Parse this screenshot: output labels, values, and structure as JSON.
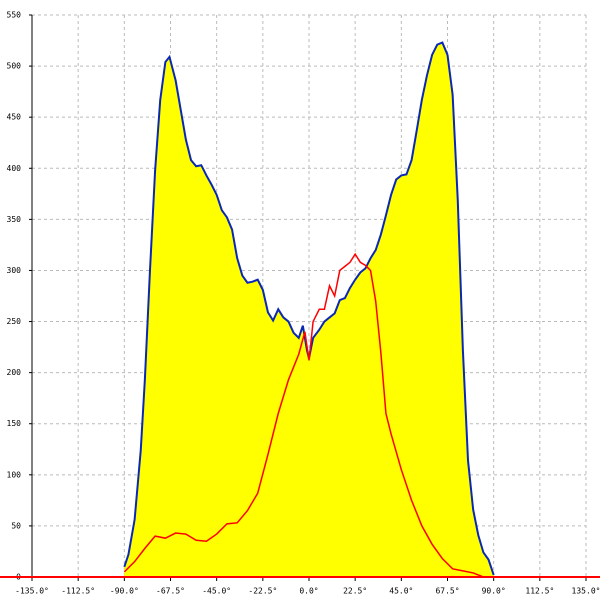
{
  "chart_data": {
    "type": "area",
    "xlim": [
      -135,
      135
    ],
    "xticks": [
      {
        "value": -135,
        "label": "-135.0°"
      },
      {
        "value": -112.5,
        "label": "-112.5°"
      },
      {
        "value": -90,
        "label": "-90.0°"
      },
      {
        "value": -67.5,
        "label": "-67.5°"
      },
      {
        "value": -45,
        "label": "-45.0°"
      },
      {
        "value": -22.5,
        "label": "-22.5°"
      },
      {
        "value": 0,
        "label": "0.0°"
      },
      {
        "value": 22.5,
        "label": "22.5°"
      },
      {
        "value": 45,
        "label": "45.0°"
      },
      {
        "value": 67.5,
        "label": "67.5°"
      },
      {
        "value": 90,
        "label": "90.0°"
      },
      {
        "value": 112.5,
        "label": "112.5°"
      },
      {
        "value": 135,
        "label": "135.0°"
      }
    ],
    "ylim": [
      0,
      550
    ],
    "yticks": [
      0,
      50,
      100,
      150,
      200,
      250,
      300,
      350,
      400,
      450,
      500,
      550
    ],
    "grid": true,
    "series": [
      {
        "kind": "area",
        "color": "#0a28b4",
        "fill": "#ffff00",
        "x": [
          -90,
          -88,
          -85,
          -82,
          -80,
          -77.5,
          -75,
          -72.5,
          -70,
          -68,
          -65,
          -62.5,
          -60,
          -57.5,
          -55,
          -52.5,
          -50,
          -47.5,
          -45,
          -42.5,
          -40,
          -37.5,
          -35,
          -32.5,
          -30,
          -27.5,
          -25,
          -22.5,
          -20,
          -17.5,
          -15,
          -12.5,
          -10,
          -7.5,
          -5,
          -3,
          -1,
          0,
          2,
          5,
          7.5,
          10,
          12.5,
          15,
          17.5,
          20,
          22.5,
          25,
          27.5,
          30,
          32.5,
          35,
          37.5,
          40,
          42.5,
          45,
          47.5,
          50,
          52.5,
          55,
          57.5,
          60,
          62.5,
          65,
          67.5,
          70,
          72.5,
          75,
          77.5,
          80,
          82.5,
          85,
          87.5,
          90
        ],
        "values": [
          10,
          22,
          56,
          124,
          193,
          300,
          398,
          467,
          504,
          509,
          486,
          457,
          428,
          408,
          402,
          403,
          393,
          384,
          374,
          359,
          352,
          340,
          312,
          295,
          288,
          289,
          291,
          281,
          259,
          251,
          262,
          254,
          250,
          239,
          234,
          246,
          222,
          214,
          234,
          242,
          250,
          254,
          258,
          271,
          273,
          283,
          291,
          298,
          302,
          312,
          320,
          335,
          354,
          374,
          389,
          393,
          394,
          408,
          437,
          467,
          491,
          511,
          521,
          523,
          511,
          472,
          369,
          222,
          114,
          66,
          41,
          24,
          17,
          2
        ]
      },
      {
        "kind": "line",
        "color": "#ff0000",
        "x": [
          -90,
          -85,
          -80,
          -75,
          -70,
          -65,
          -60,
          -55,
          -50,
          -45,
          -40,
          -35,
          -30,
          -25,
          -20,
          -15,
          -10,
          -5,
          -2,
          0,
          2,
          5,
          7.5,
          10,
          12.5,
          15,
          17.5,
          20,
          22.5,
          25,
          27.5,
          30,
          32.5,
          35,
          37.5,
          40,
          45,
          50,
          55,
          60,
          65,
          70,
          75,
          80,
          85,
          90
        ],
        "values": [
          5,
          15,
          28,
          40,
          38,
          43,
          42,
          36,
          35,
          42,
          52,
          53,
          65,
          82,
          120,
          160,
          193,
          218,
          240,
          212,
          250,
          262,
          262,
          285,
          275,
          300,
          304,
          308,
          316,
          308,
          305,
          300,
          270,
          220,
          160,
          140,
          105,
          75,
          50,
          32,
          18,
          8,
          6,
          4,
          0,
          0
        ]
      }
    ]
  }
}
